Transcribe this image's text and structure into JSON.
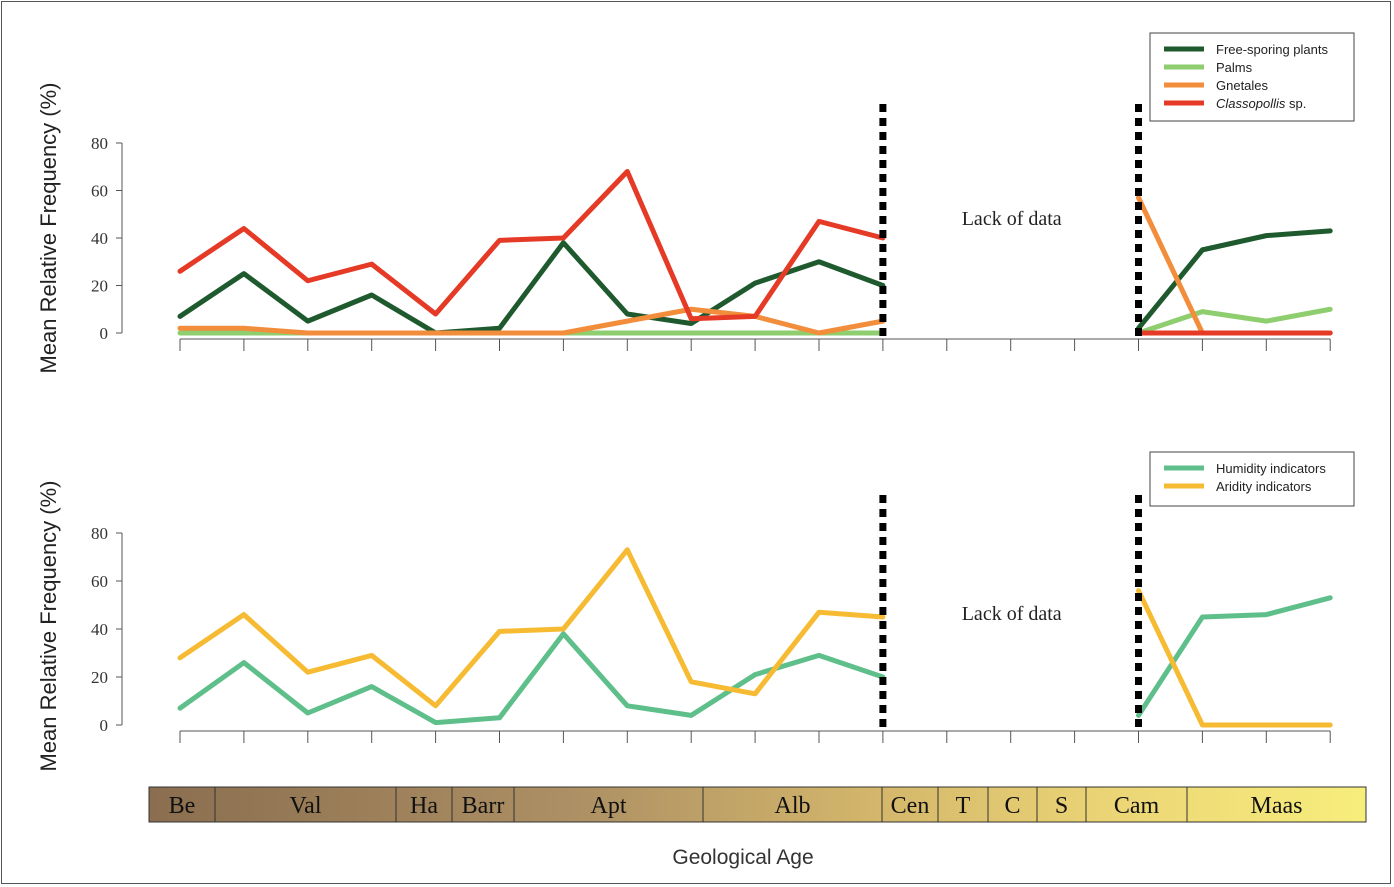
{
  "x_axis_label": "Geological Age",
  "annotation": "Lack of data",
  "chart_data": [
    {
      "type": "line",
      "ylabel": "Mean Relative Frequency (%)",
      "ylim": [
        0,
        80
      ],
      "yticks": [
        0,
        20,
        40,
        60,
        80
      ],
      "x": [
        0,
        1,
        2,
        3,
        4,
        5,
        6,
        7,
        8,
        9,
        10,
        11,
        12,
        13,
        14,
        15,
        16,
        17,
        18
      ],
      "gaps": [
        [
          11,
          15
        ]
      ],
      "legend_placement": "top-right",
      "series": [
        {
          "name": "Free-sporing plants",
          "color": "#1f5a2f",
          "values": [
            7,
            25,
            5,
            16,
            0,
            2,
            38,
            8,
            4,
            21,
            30,
            20,
            null,
            null,
            null,
            2,
            35,
            41,
            43
          ]
        },
        {
          "name": "Palms",
          "color": "#8fce6f",
          "values": [
            0,
            0,
            0,
            0,
            0,
            0,
            0,
            0,
            0,
            0,
            0,
            0,
            null,
            null,
            null,
            0,
            9,
            5,
            10
          ]
        },
        {
          "name": "Gnetales",
          "color": "#f28d3c",
          "values": [
            2,
            2,
            0,
            0,
            0,
            0,
            0,
            5,
            10,
            7,
            0,
            5,
            null,
            null,
            null,
            57,
            0,
            0,
            0
          ]
        },
        {
          "name": "Classopollis sp.",
          "name_italic": "Classopollis",
          "name_suffix": " sp.",
          "color": "#e53a26",
          "values": [
            26,
            44,
            22,
            29,
            8,
            39,
            40,
            68,
            6,
            7,
            47,
            40,
            null,
            null,
            null,
            0,
            0,
            0,
            0
          ]
        }
      ]
    },
    {
      "type": "line",
      "ylabel": "Mean Relative Frequency (%)",
      "ylim": [
        0,
        80
      ],
      "yticks": [
        0,
        20,
        40,
        60,
        80
      ],
      "x": [
        0,
        1,
        2,
        3,
        4,
        5,
        6,
        7,
        8,
        9,
        10,
        11,
        12,
        13,
        14,
        15,
        16,
        17,
        18
      ],
      "gaps": [
        [
          11,
          15
        ]
      ],
      "legend_placement": "top-right",
      "series": [
        {
          "name": "Humidity indicators",
          "color": "#5fbf8a",
          "values": [
            7,
            26,
            5,
            16,
            1,
            3,
            38,
            8,
            4,
            21,
            29,
            20,
            null,
            null,
            null,
            4,
            45,
            46,
            53
          ]
        },
        {
          "name": "Aridity indicators",
          "color": "#f6bb33",
          "values": [
            28,
            46,
            22,
            29,
            8,
            39,
            40,
            73,
            18,
            13,
            47,
            45,
            null,
            null,
            null,
            56,
            0,
            0,
            0
          ]
        }
      ]
    }
  ],
  "stages": [
    {
      "label": "Be"
    },
    {
      "label": "Val"
    },
    {
      "label": "Ha"
    },
    {
      "label": "Barr"
    },
    {
      "label": "Apt"
    },
    {
      "label": "Alb"
    },
    {
      "label": "Cen"
    },
    {
      "label": "T"
    },
    {
      "label": "C"
    },
    {
      "label": "S"
    },
    {
      "label": "Cam"
    },
    {
      "label": "Maas"
    }
  ]
}
